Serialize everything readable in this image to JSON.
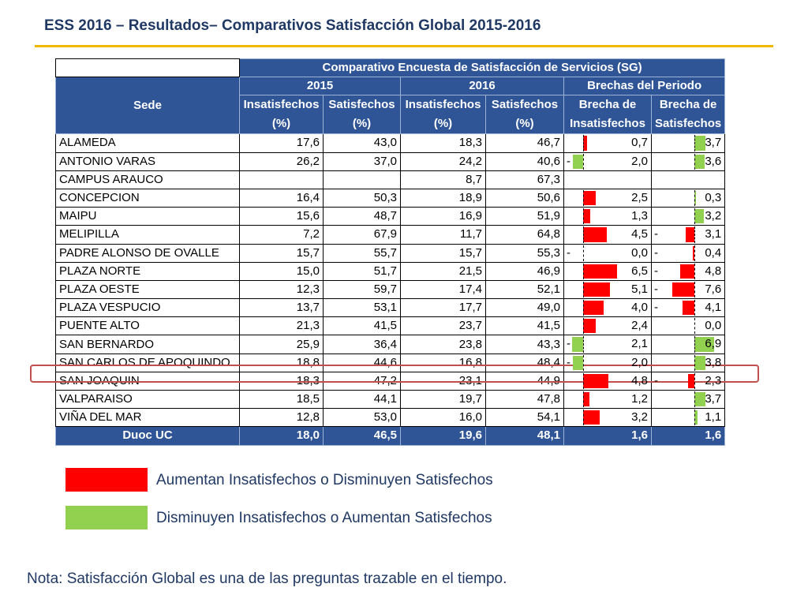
{
  "title": "ESS 2016 – Resultados– Comparativos Satisfacción Global 2015-2016",
  "table": {
    "super_header": "Comparativo Encuesta de Satisfacción de Servicios (SG)",
    "sede_header": "Sede",
    "year_2015": "2015",
    "year_2016": "2016",
    "brechas_header": "Brechas del Periodo",
    "col_insat_l1": "Insatisfechos",
    "col_sat_l1": "Satisfechos",
    "col_pct": "(%)",
    "col_brecha_l1": "Brecha de",
    "col_brecha_insat_l2": "Insatisfechos",
    "col_brecha_sat_l2": "Satisfechos",
    "rows": [
      {
        "sede": "ALAMEDA",
        "i15": "17,6",
        "s15": "43,0",
        "i16": "18,3",
        "s16": "46,7",
        "bi": "0,7",
        "bi_sign": "",
        "bi_color": "red",
        "bi_val": 0.7,
        "bs": "3,7",
        "bs_sign": "",
        "bs_color": "green",
        "bs_val": 3.7
      },
      {
        "sede": "ANTONIO VARAS",
        "i15": "26,2",
        "s15": "37,0",
        "i16": "24,2",
        "s16": "40,6",
        "bi": "2,0",
        "bi_sign": "-",
        "bi_color": "green",
        "bi_val": -2.0,
        "bs": "3,6",
        "bs_sign": "",
        "bs_color": "green",
        "bs_val": 3.6
      },
      {
        "sede": "CAMPUS ARAUCO",
        "i15": "",
        "s15": "",
        "i16": "8,7",
        "s16": "67,3",
        "bi": "",
        "bi_sign": "",
        "bi_color": "",
        "bi_val": null,
        "bs": "",
        "bs_sign": "",
        "bs_color": "",
        "bs_val": null
      },
      {
        "sede": "CONCEPCION",
        "i15": "16,4",
        "s15": "50,3",
        "i16": "18,9",
        "s16": "50,6",
        "bi": "2,5",
        "bi_sign": "",
        "bi_color": "red",
        "bi_val": 2.5,
        "bs": "0,3",
        "bs_sign": "",
        "bs_color": "green",
        "bs_val": 0.3
      },
      {
        "sede": "MAIPU",
        "i15": "15,6",
        "s15": "48,7",
        "i16": "16,9",
        "s16": "51,9",
        "bi": "1,3",
        "bi_sign": "",
        "bi_color": "red",
        "bi_val": 1.3,
        "bs": "3,2",
        "bs_sign": "",
        "bs_color": "green",
        "bs_val": 3.2
      },
      {
        "sede": "MELIPILLA",
        "i15": "7,2",
        "s15": "67,9",
        "i16": "11,7",
        "s16": "64,8",
        "bi": "4,5",
        "bi_sign": "",
        "bi_color": "red",
        "bi_val": 4.5,
        "bs": "3,1",
        "bs_sign": "-",
        "bs_color": "red",
        "bs_val": -3.1
      },
      {
        "sede": "PADRE ALONSO DE OVALLE",
        "i15": "15,7",
        "s15": "55,7",
        "i16": "15,7",
        "s16": "55,3",
        "bi": "0,0",
        "bi_sign": "-",
        "bi_color": "",
        "bi_val": 0,
        "bs": "0,4",
        "bs_sign": "-",
        "bs_color": "red",
        "bs_val": -0.4
      },
      {
        "sede": "PLAZA NORTE",
        "i15": "15,0",
        "s15": "51,7",
        "i16": "21,5",
        "s16": "46,9",
        "bi": "6,5",
        "bi_sign": "",
        "bi_color": "red",
        "bi_val": 6.5,
        "bs": "4,8",
        "bs_sign": "-",
        "bs_color": "red",
        "bs_val": -4.8
      },
      {
        "sede": "PLAZA OESTE",
        "i15": "12,3",
        "s15": "59,7",
        "i16": "17,4",
        "s16": "52,1",
        "bi": "5,1",
        "bi_sign": "",
        "bi_color": "red",
        "bi_val": 5.1,
        "bs": "7,6",
        "bs_sign": "-",
        "bs_color": "red",
        "bs_val": -7.6
      },
      {
        "sede": "PLAZA VESPUCIO",
        "i15": "13,7",
        "s15": "53,1",
        "i16": "17,7",
        "s16": "49,0",
        "bi": "4,0",
        "bi_sign": "",
        "bi_color": "red",
        "bi_val": 4.0,
        "bs": "4,1",
        "bs_sign": "-",
        "bs_color": "red",
        "bs_val": -4.1
      },
      {
        "sede": "PUENTE ALTO",
        "i15": "21,3",
        "s15": "41,5",
        "i16": "23,7",
        "s16": "41,5",
        "bi": "2,4",
        "bi_sign": "",
        "bi_color": "red",
        "bi_val": 2.4,
        "bs": "0,0",
        "bs_sign": "",
        "bs_color": "",
        "bs_val": 0
      },
      {
        "sede": "SAN BERNARDO",
        "i15": "25,9",
        "s15": "36,4",
        "i16": "23,8",
        "s16": "43,3",
        "bi": "2,1",
        "bi_sign": "-",
        "bi_color": "green",
        "bi_val": -2.1,
        "bs": "6,9",
        "bs_sign": "",
        "bs_color": "green",
        "bs_val": 6.9
      },
      {
        "sede": "SAN CARLOS DE APOQUINDO",
        "i15": "18,8",
        "s15": "44,6",
        "i16": "16,8",
        "s16": "48,4",
        "bi": "2,0",
        "bi_sign": "-",
        "bi_color": "green",
        "bi_val": -2.0,
        "bs": "3,8",
        "bs_sign": "",
        "bs_color": "green",
        "bs_val": 3.8
      },
      {
        "sede": "SAN JOAQUIN",
        "i15": "18,3",
        "s15": "47,2",
        "i16": "23,1",
        "s16": "44,9",
        "bi": "4,8",
        "bi_sign": "",
        "bi_color": "red",
        "bi_val": 4.8,
        "bs": "2,3",
        "bs_sign": "-",
        "bs_color": "red",
        "bs_val": -2.3
      },
      {
        "sede": "VALPARAISO",
        "i15": "18,5",
        "s15": "44,1",
        "i16": "19,7",
        "s16": "47,8",
        "bi": "1,2",
        "bi_sign": "",
        "bi_color": "red",
        "bi_val": 1.2,
        "bs": "3,7",
        "bs_sign": "",
        "bs_color": "green",
        "bs_val": 3.7
      },
      {
        "sede": "VIÑA DEL MAR",
        "i15": "12,8",
        "s15": "53,0",
        "i16": "16,0",
        "s16": "54,1",
        "bi": "3,2",
        "bi_sign": "",
        "bi_color": "red",
        "bi_val": 3.2,
        "bs": "1,1",
        "bs_sign": "",
        "bs_color": "green",
        "bs_val": 1.1
      }
    ],
    "total": {
      "sede": "Duoc UC",
      "i15": "18,0",
      "s15": "46,5",
      "i16": "19,6",
      "s16": "48,1",
      "bi": "1,6",
      "bs": "1,6"
    }
  },
  "legend": {
    "red_label": "Aumentan Insatisfechos o Disminuyen Satisfechos",
    "green_label": "Disminuyen Insatisfechos o Aumentan Satisfechos"
  },
  "colors": {
    "header": "#2f5597",
    "red": "#ff0000",
    "green": "#92d050",
    "title": "#1f3864",
    "accent": "#f2b800"
  },
  "note": "Nota: Satisfacción Global es una de las preguntas trazable en el tiempo."
}
